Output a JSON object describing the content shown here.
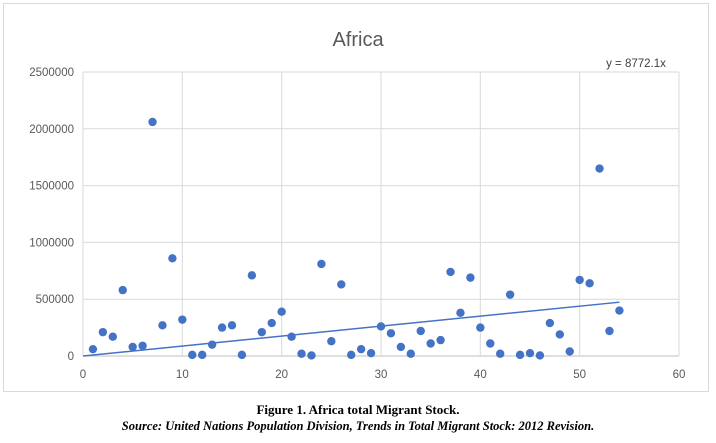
{
  "chart_data": {
    "type": "scatter",
    "title": "Africa",
    "xlabel": "",
    "ylabel": "",
    "xlim": [
      0,
      60
    ],
    "ylim": [
      0,
      2500000
    ],
    "x_ticks": [
      "0",
      "10",
      "20",
      "30",
      "40",
      "50",
      "60"
    ],
    "y_ticks": [
      "0",
      "500000",
      "1000000",
      "1500000",
      "2000000",
      "2500000"
    ],
    "grid": true,
    "legend": "none",
    "trendline": {
      "label": "y = 8772.1x",
      "slope": 8772.1,
      "x_range": [
        0,
        54
      ]
    },
    "marker_color": "#4472c4",
    "line_color": "#4472c4",
    "series": [
      {
        "x": [
          1,
          2,
          3,
          4,
          5,
          6,
          7,
          8,
          9,
          10,
          11,
          12,
          13,
          14,
          15,
          16,
          17,
          18,
          19,
          20,
          21,
          22,
          23,
          24,
          25,
          26,
          27,
          28,
          29,
          30,
          31,
          32,
          33,
          34,
          35,
          36,
          37,
          38,
          39,
          40,
          41,
          42,
          43,
          44,
          45,
          46,
          47,
          48,
          49,
          50,
          51,
          52,
          53,
          54
        ],
        "y": [
          60000,
          210000,
          170000,
          580000,
          80000,
          90000,
          2060000,
          270000,
          860000,
          320000,
          10000,
          10000,
          100000,
          250000,
          270000,
          10000,
          710000,
          210000,
          290000,
          390000,
          170000,
          20000,
          5000,
          810000,
          130000,
          630000,
          10000,
          60000,
          25000,
          260000,
          200000,
          80000,
          20000,
          220000,
          110000,
          140000,
          740000,
          380000,
          690000,
          250000,
          110000,
          20000,
          540000,
          10000,
          25000,
          5000,
          290000,
          190000,
          40000,
          670000,
          640000,
          1650000,
          220000,
          400000
        ]
      }
    ]
  },
  "caption": {
    "title": "Figure 1. Africa total Migrant Stock.",
    "source": "Source: United Nations Population Division, Trends in Total Migrant Stock: 2012 Revision."
  }
}
